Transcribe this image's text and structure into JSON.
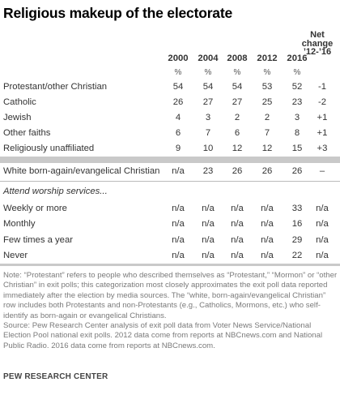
{
  "title": "Religious makeup of the electorate",
  "net_change_header": [
    "Net",
    "change",
    "’12-’16"
  ],
  "years": [
    "2000",
    "2004",
    "2008",
    "2012",
    "2016"
  ],
  "percent_symbol": "%",
  "chart_data": {
    "type": "table",
    "title": "Religious makeup of the electorate",
    "columns": [
      "2000",
      "2004",
      "2008",
      "2012",
      "2016",
      "Net change ’12-’16"
    ],
    "units": "%",
    "groups": [
      {
        "name": "",
        "rows": [
          {
            "label": "Protestant/other Christian",
            "values": [
              "54",
              "54",
              "54",
              "53",
              "52"
            ],
            "net": "-1"
          },
          {
            "label": "Catholic",
            "values": [
              "26",
              "27",
              "27",
              "25",
              "23"
            ],
            "net": "-2"
          },
          {
            "label": "Jewish",
            "values": [
              "4",
              "3",
              "2",
              "2",
              "3"
            ],
            "net": "+1"
          },
          {
            "label": "Other faiths",
            "values": [
              "6",
              "7",
              "6",
              "7",
              "8"
            ],
            "net": "+1"
          },
          {
            "label": "Religiously unaffiliated",
            "values": [
              "9",
              "10",
              "12",
              "12",
              "15"
            ],
            "net": "+3"
          }
        ]
      },
      {
        "name": "",
        "rows": [
          {
            "label": "White born-again/evangelical Christian",
            "values": [
              "n/a",
              "23",
              "26",
              "26",
              "26"
            ],
            "net": "–"
          }
        ]
      },
      {
        "name": "Attend worship services...",
        "rows": [
          {
            "label": "Weekly or more",
            "values": [
              "n/a",
              "n/a",
              "n/a",
              "n/a",
              "33"
            ],
            "net": "n/a"
          },
          {
            "label": "Monthly",
            "values": [
              "n/a",
              "n/a",
              "n/a",
              "n/a",
              "16"
            ],
            "net": "n/a"
          },
          {
            "label": "Few times a year",
            "values": [
              "n/a",
              "n/a",
              "n/a",
              "n/a",
              "29"
            ],
            "net": "n/a"
          },
          {
            "label": "Never",
            "values": [
              "n/a",
              "n/a",
              "n/a",
              "n/a",
              "22"
            ],
            "net": "n/a"
          }
        ]
      }
    ]
  },
  "note": "Note: “Protestant” refers to people who described themselves as “Protestant,” “Mormon” or “other Christian” in exit polls; this categorization most closely approximates the exit poll data reported immediately after the election by media sources. The “white, born-again/evangelical Christian” row includes both Protestants and non-Protestants (e.g., Catholics, Mormons, etc.) who self-identify as born-again or evangelical Christians.",
  "source": "Source: Pew Research Center analysis of exit poll data from Voter News Service/National Election Pool national exit polls. 2012 data come from reports at NBCnews.com and National Public Radio. 2016 data come from reports at NBCnews.com.",
  "footer": "PEW RESEARCH CENTER",
  "colors": {
    "band": "#c9c9c9",
    "text": "#333333",
    "note": "#7a7a7a"
  }
}
